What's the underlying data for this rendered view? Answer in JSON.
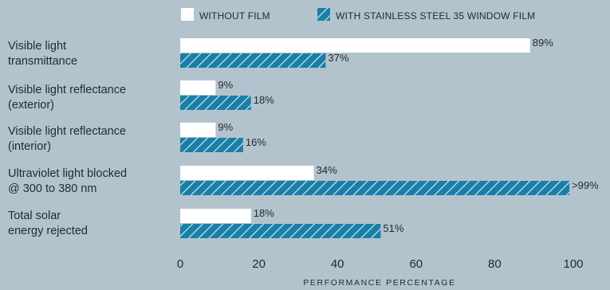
{
  "chart_data": {
    "type": "bar",
    "orientation": "horizontal",
    "categories": [
      [
        "Visible light",
        "transmittance"
      ],
      [
        "Visible light reflectance",
        "(exterior)"
      ],
      [
        "Visible light reflectance",
        "(interior)"
      ],
      [
        "Ultraviolet light blocked",
        "@ 300 to 380 nm"
      ],
      [
        "Total solar",
        "energy rejected"
      ]
    ],
    "series": [
      {
        "name": "WITHOUT FILM",
        "values": [
          89,
          9,
          9,
          34,
          18
        ],
        "labels": [
          "89%",
          "9%",
          "9%",
          "34%",
          "18%"
        ],
        "color": "#ffffff",
        "pattern": "solid"
      },
      {
        "name": "WITH STAINLESS STEEL 35 WINDOW FILM",
        "values": [
          37,
          18,
          16,
          99,
          51
        ],
        "labels": [
          "37%",
          "18%",
          "16%",
          ">99%",
          "51%"
        ],
        "color": "#1a7fa6",
        "pattern": "diagonal-hatch"
      }
    ],
    "xlabel": "PERFORMANCE PERCENTAGE",
    "xlim": [
      0,
      100
    ],
    "xticks": [
      0,
      20,
      40,
      60,
      80,
      100
    ],
    "grid": false,
    "legend_position": "top"
  }
}
